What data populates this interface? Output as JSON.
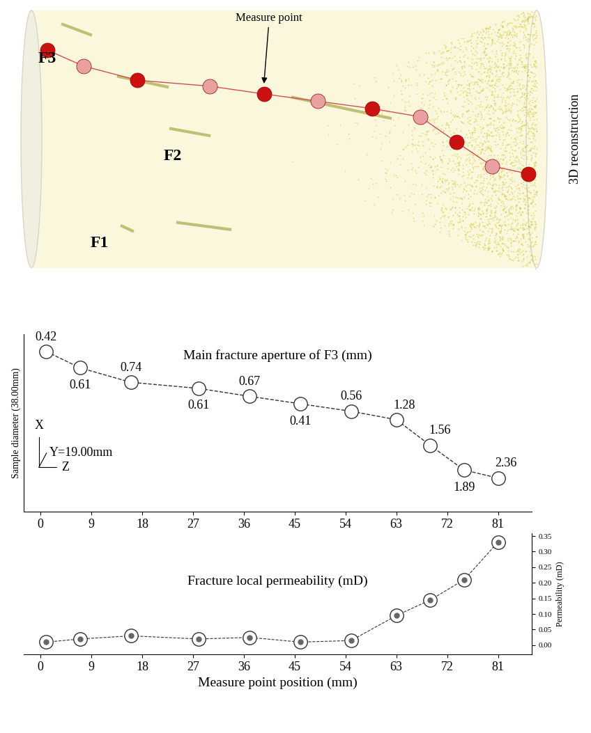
{
  "reconstruction": {
    "fracture_labels": [
      "F3",
      "F2",
      "F1"
    ],
    "annotation": "Measure point",
    "side_label": "3D reconstruction"
  },
  "chart_data": [
    {
      "type": "line",
      "title": "Main fracture aperture of F3 (mm)",
      "x_label": "Measure point position (mm)",
      "y_label": "Sample diameter (38.00mm)",
      "x": [
        1,
        7,
        16,
        28,
        37,
        46,
        55,
        63,
        69,
        75,
        81
      ],
      "values": [
        34.3,
        30.8,
        27.7,
        26.4,
        24.7,
        23.1,
        21.5,
        19.7,
        14.2,
        8.9,
        7.2
      ],
      "apertures": [
        0.42,
        0.61,
        0.74,
        0.61,
        0.67,
        0.41,
        0.56,
        1.28,
        1.56,
        1.89,
        2.36
      ],
      "annotations": [
        "X",
        "Y=19.00mm",
        "Z"
      ],
      "xlim": [
        -3,
        87
      ],
      "ylim": [
        0,
        38
      ],
      "xticks": [
        0,
        9,
        18,
        27,
        36,
        45,
        54,
        63,
        72,
        81
      ],
      "tick_labels": "x",
      "marker": "o",
      "line_style": "dashed",
      "color": "#333333"
    },
    {
      "type": "line",
      "title": "Fracture local permeability (mD)",
      "x_label": "Measure point position (mm)",
      "y_label": "Permeability (mD)",
      "x": [
        1,
        7,
        16,
        28,
        37,
        46,
        55,
        63,
        69,
        75,
        81
      ],
      "values": [
        0.01,
        0.02,
        0.03,
        0.02,
        0.025,
        0.01,
        0.015,
        0.095,
        0.145,
        0.21,
        0.33
      ],
      "xlim": [
        -3,
        87
      ],
      "ylim": [
        -0.03,
        0.36
      ],
      "xticks": [
        0,
        9,
        18,
        27,
        36,
        45,
        54,
        63,
        72,
        81
      ],
      "yticks": [
        {
          "value": 0.0,
          "label": "0.00"
        },
        {
          "value": 0.05,
          "label": "0.05"
        },
        {
          "value": 0.1,
          "label": "0.10"
        },
        {
          "value": 0.15,
          "label": "0.15"
        },
        {
          "value": 0.2,
          "label": "0.20"
        },
        {
          "value": 0.25,
          "label": "0.25"
        },
        {
          "value": 0.3,
          "label": "0.30"
        },
        {
          "value": 0.35,
          "label": "0.35"
        }
      ],
      "marker": "o",
      "line_style": "dashed",
      "color": "#333333"
    }
  ]
}
